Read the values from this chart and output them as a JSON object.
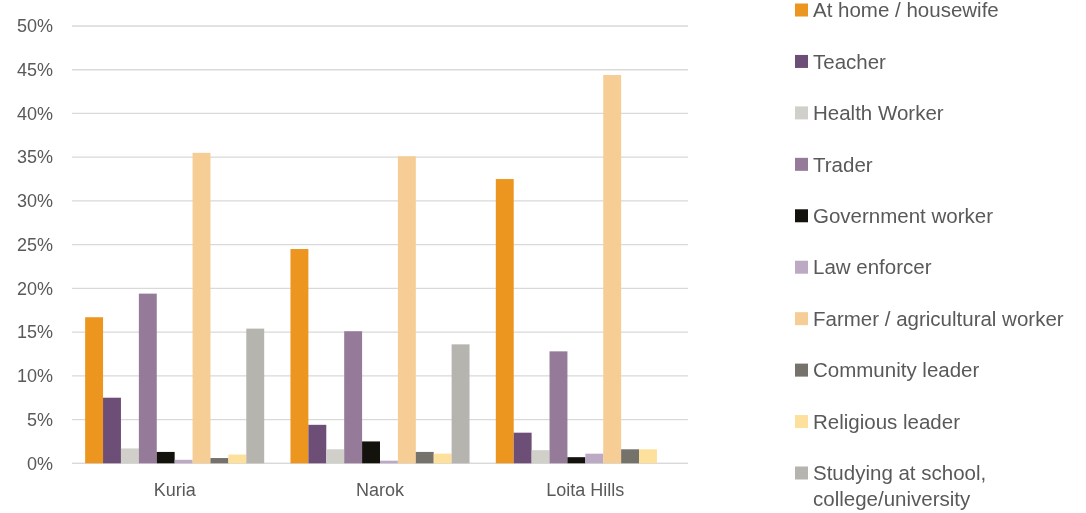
{
  "chart_data": {
    "type": "bar",
    "categories": [
      "Kuria",
      "Narok",
      "Loita Hills"
    ],
    "series": [
      {
        "name": "At home / housewife",
        "color": "#ec9620",
        "values": [
          16.7,
          24.5,
          32.5
        ]
      },
      {
        "name": "Teacher",
        "color": "#6d4e77",
        "values": [
          7.5,
          4.4,
          3.5
        ]
      },
      {
        "name": "Health Worker",
        "color": "#d0cfc9",
        "values": [
          1.7,
          1.6,
          1.5
        ]
      },
      {
        "name": "Trader",
        "color": "#957a99",
        "values": [
          19.4,
          15.1,
          12.8
        ]
      },
      {
        "name": "Government worker",
        "color": "#13120d",
        "values": [
          1.3,
          2.5,
          0.7
        ]
      },
      {
        "name": "Law enforcer",
        "color": "#bcaac4",
        "values": [
          0.4,
          0.3,
          1.1
        ]
      },
      {
        "name": "Farmer / agricultural worker",
        "color": "#f6cd95",
        "values": [
          35.5,
          35.1,
          44.4
        ]
      },
      {
        "name": "Community leader",
        "color": "#75716b",
        "values": [
          0.6,
          1.3,
          1.6
        ]
      },
      {
        "name": "Religious leader",
        "color": "#fde09c",
        "values": [
          1.0,
          1.1,
          1.6
        ]
      },
      {
        "name": "Studying at school, college/university",
        "color": "#b5b4af",
        "values": [
          15.4,
          13.6,
          null
        ]
      }
    ],
    "ylim": [
      0,
      50
    ],
    "yticks": [
      {
        "value": 0,
        "label": "0%"
      },
      {
        "value": 5,
        "label": "5%"
      },
      {
        "value": 10,
        "label": "10%"
      },
      {
        "value": 15,
        "label": "15%"
      },
      {
        "value": 20,
        "label": "20%"
      },
      {
        "value": 25,
        "label": "25%"
      },
      {
        "value": 30,
        "label": "30%"
      },
      {
        "value": 35,
        "label": "35%"
      },
      {
        "value": 40,
        "label": "40%"
      },
      {
        "value": 45,
        "label": "45%"
      },
      {
        "value": 50,
        "label": "50%"
      }
    ],
    "grid": "y",
    "legend": "right"
  }
}
